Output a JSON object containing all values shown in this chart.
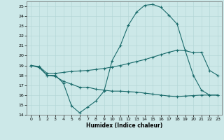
{
  "title": "",
  "xlabel": "Humidex (Indice chaleur)",
  "ylabel": "",
  "background_color": "#cce8e8",
  "line_color": "#1a6b6b",
  "xlim": [
    -0.5,
    23.5
  ],
  "ylim": [
    14,
    25.5
  ],
  "yticks": [
    14,
    15,
    16,
    17,
    18,
    19,
    20,
    21,
    22,
    23,
    24,
    25
  ],
  "xticks": [
    0,
    1,
    2,
    3,
    4,
    5,
    6,
    7,
    8,
    9,
    10,
    11,
    12,
    13,
    14,
    15,
    16,
    17,
    18,
    19,
    20,
    21,
    22,
    23
  ],
  "line1_x": [
    0,
    1,
    2,
    3,
    4,
    5,
    6,
    7,
    8,
    9,
    10,
    11,
    12,
    13,
    14,
    15,
    16,
    17,
    18,
    19,
    20,
    21,
    22,
    23
  ],
  "line1_y": [
    19.0,
    18.8,
    18.0,
    18.0,
    17.2,
    14.9,
    14.2,
    14.8,
    15.4,
    16.4,
    19.5,
    21.0,
    23.1,
    24.4,
    25.1,
    25.2,
    24.9,
    24.1,
    23.2,
    20.5,
    18.0,
    16.5,
    16.0,
    16.0
  ],
  "line2_x": [
    0,
    1,
    2,
    3,
    4,
    5,
    6,
    7,
    8,
    9,
    10,
    11,
    12,
    13,
    14,
    15,
    16,
    17,
    18,
    19,
    20,
    21,
    22,
    23
  ],
  "line2_y": [
    19.0,
    18.9,
    18.2,
    18.2,
    18.3,
    18.4,
    18.45,
    18.5,
    18.6,
    18.7,
    18.85,
    19.0,
    19.2,
    19.4,
    19.6,
    19.85,
    20.1,
    20.35,
    20.55,
    20.5,
    20.3,
    20.35,
    18.5,
    18.0
  ],
  "line3_x": [
    0,
    1,
    2,
    3,
    4,
    5,
    6,
    7,
    8,
    9,
    10,
    11,
    12,
    13,
    14,
    15,
    16,
    17,
    18,
    19,
    20,
    21,
    22,
    23
  ],
  "line3_y": [
    19.0,
    18.85,
    18.0,
    17.9,
    17.4,
    17.1,
    16.8,
    16.8,
    16.6,
    16.5,
    16.4,
    16.4,
    16.35,
    16.3,
    16.2,
    16.1,
    16.0,
    15.9,
    15.85,
    15.9,
    15.95,
    16.0,
    16.0,
    16.0
  ]
}
